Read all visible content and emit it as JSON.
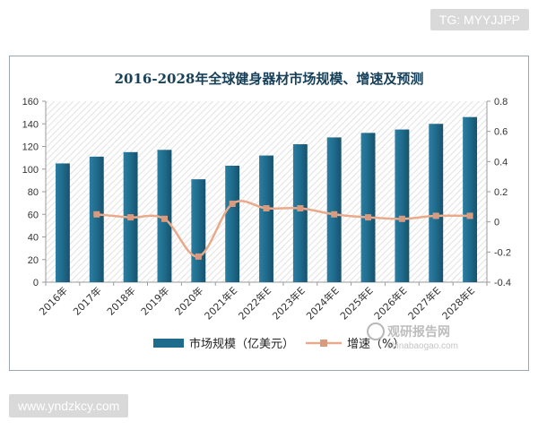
{
  "watermarks": {
    "top": "TG: MYYJJPP",
    "bottom": "www.yndzkcy.com",
    "logo_cn": "观研报告网",
    "logo_en": "chinabaogao.com"
  },
  "chart_data": {
    "type": "bar",
    "title": "2016-2028年全球健身器材市场规模、增速及预测",
    "categories": [
      "2016年",
      "2017年",
      "2018年",
      "2019年",
      "2020年",
      "2021年E",
      "2022年E",
      "2023年E",
      "2024年E",
      "2025年E",
      "2026年E",
      "2027年E",
      "2028年E"
    ],
    "series": [
      {
        "name": "市场规模（亿美元）",
        "type": "bar",
        "axis": "left",
        "values": [
          105,
          111,
          115,
          117,
          91,
          103,
          112,
          122,
          128,
          132,
          135,
          140,
          146
        ]
      },
      {
        "name": "增速（%）",
        "type": "line",
        "axis": "right",
        "values": [
          null,
          0.05,
          0.03,
          0.02,
          -0.23,
          0.12,
          0.09,
          0.09,
          0.05,
          0.03,
          0.02,
          0.04,
          0.04
        ]
      }
    ],
    "ylim_left": [
      0,
      160
    ],
    "yticks_left": [
      "0",
      "20",
      "40",
      "60",
      "80",
      "100",
      "120",
      "140",
      "160"
    ],
    "ylim_right": [
      -0.4,
      0.8
    ],
    "yticks_right": [
      "-0.4",
      "-0.2",
      "0",
      "0.2",
      "0.4",
      "0.6",
      "0.8"
    ],
    "legend_position": "bottom",
    "colors": {
      "bar": "#1f6b8c",
      "bar_top": "#2f86a8",
      "line": "#e8aa8a",
      "marker": "#d99b80",
      "plot_hatch": "#e4e4e4",
      "axis": "#808080",
      "title": "#17415a"
    }
  }
}
